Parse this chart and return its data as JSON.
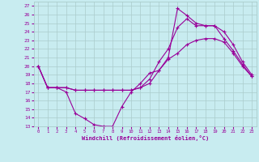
{
  "title": "",
  "xlabel": "Windchill (Refroidissement éolien,°C)",
  "bg_color": "#c8ecf0",
  "grid_color": "#aacccc",
  "line_color": "#990099",
  "xlim": [
    -0.5,
    23.5
  ],
  "ylim": [
    13,
    27.5
  ],
  "xticks": [
    0,
    1,
    2,
    3,
    4,
    5,
    6,
    7,
    8,
    9,
    10,
    11,
    12,
    13,
    14,
    15,
    16,
    17,
    18,
    19,
    20,
    21,
    22,
    23
  ],
  "yticks": [
    13,
    14,
    15,
    16,
    17,
    18,
    19,
    20,
    21,
    22,
    23,
    24,
    25,
    26,
    27
  ],
  "line1_x": [
    0,
    1,
    2,
    3,
    4,
    5,
    6,
    7,
    8,
    9,
    10,
    11,
    12,
    13,
    14,
    15,
    16,
    17,
    18,
    19,
    20,
    21,
    22,
    23
  ],
  "line1_y": [
    20.0,
    17.5,
    17.5,
    17.0,
    14.5,
    13.9,
    13.2,
    13.0,
    13.0,
    15.3,
    17.0,
    18.0,
    19.2,
    19.5,
    21.0,
    26.7,
    25.9,
    25.0,
    24.7,
    24.7,
    23.2,
    21.8,
    20.2,
    18.8
  ],
  "line2_x": [
    0,
    1,
    2,
    3,
    4,
    5,
    6,
    7,
    8,
    9,
    10,
    11,
    12,
    13,
    14,
    15,
    16,
    17,
    18,
    19,
    20,
    21,
    22,
    23
  ],
  "line2_y": [
    20.0,
    17.5,
    17.5,
    17.5,
    17.2,
    17.2,
    17.2,
    17.2,
    17.2,
    17.2,
    17.2,
    17.5,
    18.5,
    20.5,
    22.0,
    24.5,
    25.5,
    24.7,
    24.7,
    24.7,
    24.0,
    22.5,
    20.5,
    19.0
  ],
  "line3_x": [
    0,
    1,
    2,
    3,
    4,
    5,
    6,
    7,
    8,
    9,
    10,
    11,
    12,
    13,
    14,
    15,
    16,
    17,
    18,
    19,
    20,
    21,
    22,
    23
  ],
  "line3_y": [
    20.0,
    17.5,
    17.5,
    17.5,
    17.2,
    17.2,
    17.2,
    17.2,
    17.2,
    17.2,
    17.2,
    17.5,
    18.0,
    19.5,
    20.8,
    21.5,
    22.5,
    23.0,
    23.2,
    23.2,
    22.8,
    21.5,
    20.0,
    18.8
  ]
}
